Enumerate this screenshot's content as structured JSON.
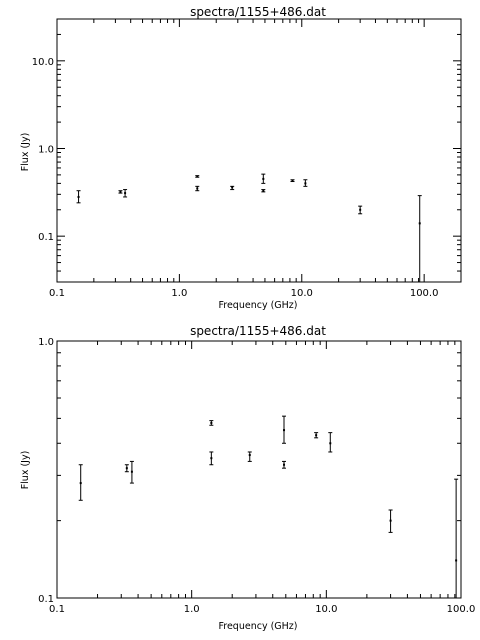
{
  "chart_data": [
    {
      "type": "scatter",
      "title": "spectra/1155+486.dat",
      "xlabel": "Frequency (GHz)",
      "ylabel": "Flux (Jy)",
      "x_scale": "log",
      "y_scale": "log",
      "xlim": [
        0.1,
        200
      ],
      "ylim": [
        0.03,
        30
      ],
      "x_ticks": [
        {
          "value": 0.1,
          "label": "0.1"
        },
        {
          "value": 1.0,
          "label": "1.0"
        },
        {
          "value": 10.0,
          "label": "10.0"
        },
        {
          "value": 100.0,
          "label": "100.0"
        }
      ],
      "y_ticks": [
        {
          "value": 0.1,
          "label": "0.1"
        },
        {
          "value": 1.0,
          "label": "1.0"
        },
        {
          "value": 10.0,
          "label": "10.0"
        }
      ],
      "points": [
        {
          "x": 0.15,
          "y": 0.28,
          "ylo": 0.24,
          "yhi": 0.33
        },
        {
          "x": 0.33,
          "y": 0.32,
          "ylo": 0.31,
          "yhi": 0.33
        },
        {
          "x": 0.36,
          "y": 0.31,
          "ylo": 0.28,
          "yhi": 0.34
        },
        {
          "x": 1.4,
          "y": 0.48,
          "ylo": 0.47,
          "yhi": 0.49
        },
        {
          "x": 1.4,
          "y": 0.35,
          "ylo": 0.33,
          "yhi": 0.37
        },
        {
          "x": 2.7,
          "y": 0.36,
          "ylo": 0.34,
          "yhi": 0.37
        },
        {
          "x": 4.85,
          "y": 0.45,
          "ylo": 0.4,
          "yhi": 0.51
        },
        {
          "x": 4.85,
          "y": 0.33,
          "ylo": 0.32,
          "yhi": 0.34
        },
        {
          "x": 8.4,
          "y": 0.43,
          "ylo": 0.42,
          "yhi": 0.44
        },
        {
          "x": 10.7,
          "y": 0.4,
          "ylo": 0.37,
          "yhi": 0.44
        },
        {
          "x": 30.0,
          "y": 0.2,
          "ylo": 0.18,
          "yhi": 0.22
        },
        {
          "x": 92.0,
          "y": 0.14,
          "ylo": 0.03,
          "yhi": 0.29
        }
      ]
    },
    {
      "type": "scatter",
      "title": "spectra/1155+486.dat",
      "xlabel": "Frequency (GHz)",
      "ylabel": "Flux (Jy)",
      "x_scale": "log",
      "y_scale": "log",
      "xlim": [
        0.1,
        100
      ],
      "ylim": [
        0.1,
        1.0
      ],
      "x_ticks": [
        {
          "value": 0.1,
          "label": "0.1"
        },
        {
          "value": 1.0,
          "label": "1.0"
        },
        {
          "value": 10.0,
          "label": "10.0"
        },
        {
          "value": 100.0,
          "label": "100.0"
        }
      ],
      "y_ticks": [
        {
          "value": 0.1,
          "label": "0.1"
        },
        {
          "value": 1.0,
          "label": "1.0"
        }
      ],
      "points": [
        {
          "x": 0.15,
          "y": 0.28,
          "ylo": 0.24,
          "yhi": 0.33
        },
        {
          "x": 0.33,
          "y": 0.32,
          "ylo": 0.31,
          "yhi": 0.33
        },
        {
          "x": 0.36,
          "y": 0.31,
          "ylo": 0.28,
          "yhi": 0.34
        },
        {
          "x": 1.4,
          "y": 0.48,
          "ylo": 0.47,
          "yhi": 0.49
        },
        {
          "x": 1.4,
          "y": 0.35,
          "ylo": 0.33,
          "yhi": 0.37
        },
        {
          "x": 2.7,
          "y": 0.36,
          "ylo": 0.34,
          "yhi": 0.37
        },
        {
          "x": 4.85,
          "y": 0.45,
          "ylo": 0.4,
          "yhi": 0.51
        },
        {
          "x": 4.85,
          "y": 0.33,
          "ylo": 0.32,
          "yhi": 0.34
        },
        {
          "x": 8.4,
          "y": 0.43,
          "ylo": 0.42,
          "yhi": 0.44
        },
        {
          "x": 10.7,
          "y": 0.4,
          "ylo": 0.37,
          "yhi": 0.44
        },
        {
          "x": 30.0,
          "y": 0.2,
          "ylo": 0.18,
          "yhi": 0.22
        },
        {
          "x": 92.0,
          "y": 0.14,
          "ylo": 0.03,
          "yhi": 0.29
        }
      ]
    }
  ]
}
